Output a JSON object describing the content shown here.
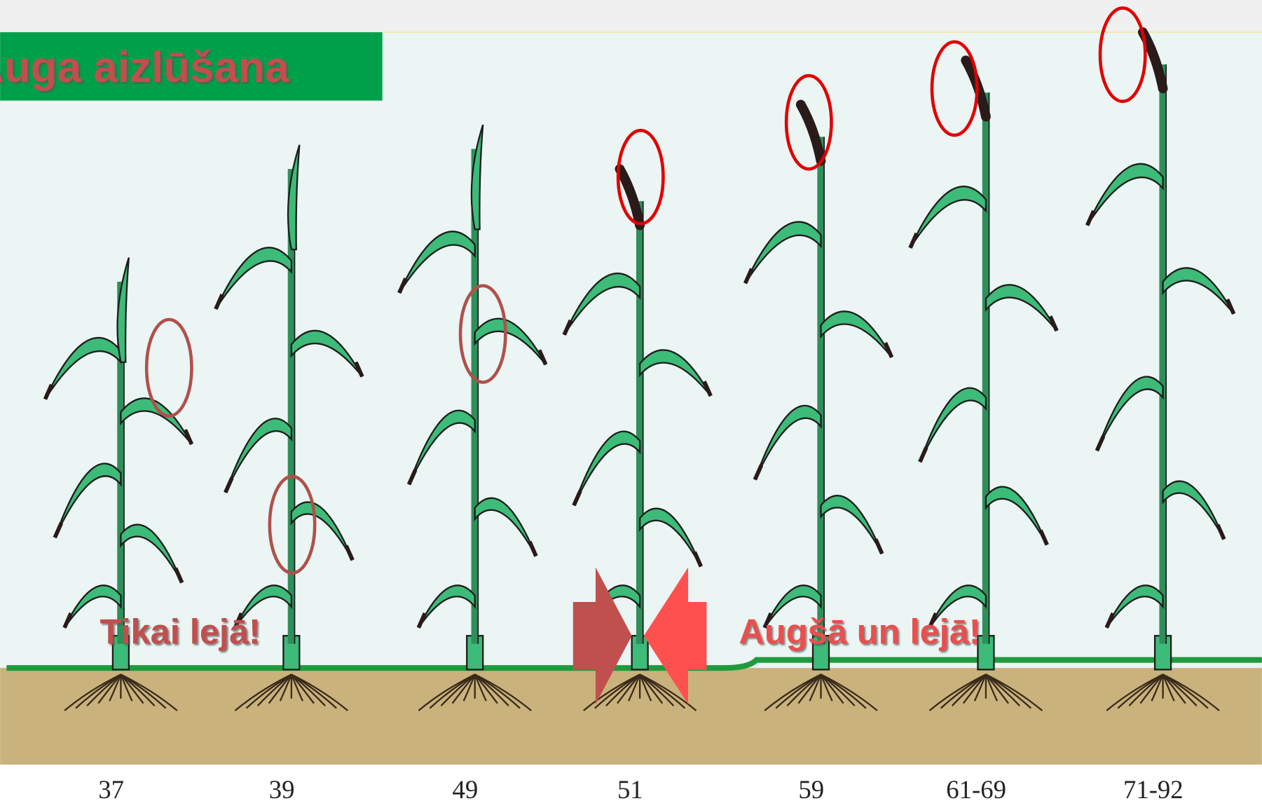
{
  "header": {
    "title": "Auga aizlūšana"
  },
  "annotations": {
    "left": "Tikai lejā!",
    "right": "Augšā un lejā!"
  },
  "stages": [
    "37",
    "39",
    "49",
    "51",
    "59",
    "61-69",
    "71-92"
  ]
}
